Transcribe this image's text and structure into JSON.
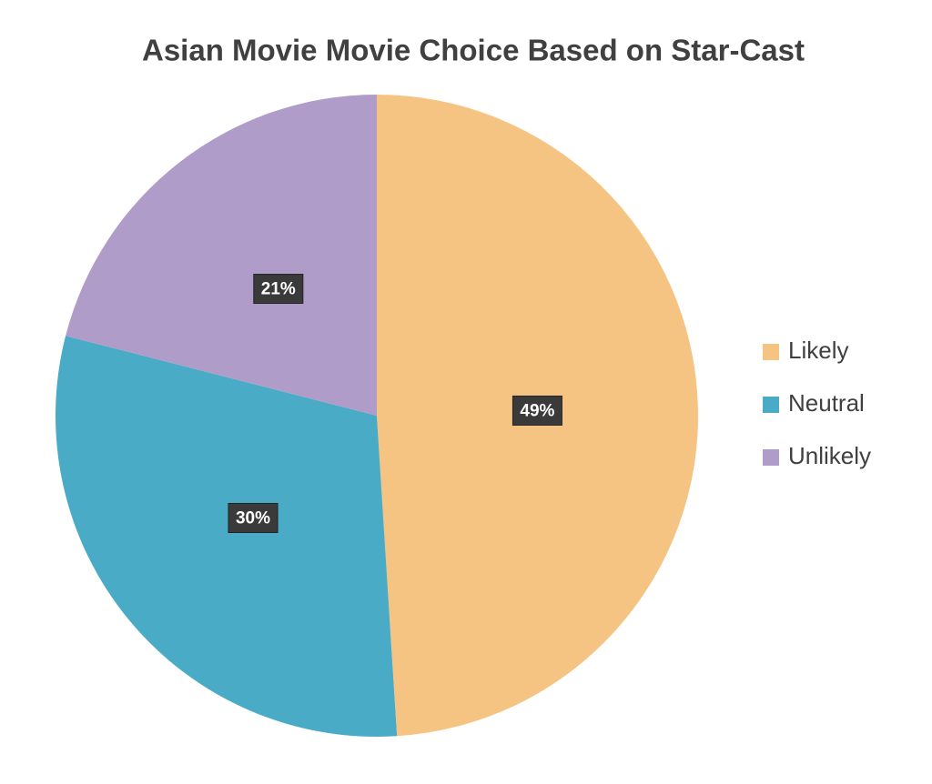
{
  "chart_data": {
    "type": "pie",
    "title": "Asian Movie Movie Choice Based on Star-Cast",
    "categories": [
      "Likely",
      "Neutral",
      "Unlikely"
    ],
    "values": [
      49,
      30,
      21
    ],
    "value_labels": [
      "49%",
      "30%",
      "21%"
    ],
    "colors": [
      "#f6c482",
      "#4aabc6",
      "#b09cc8"
    ],
    "legend": "right"
  }
}
